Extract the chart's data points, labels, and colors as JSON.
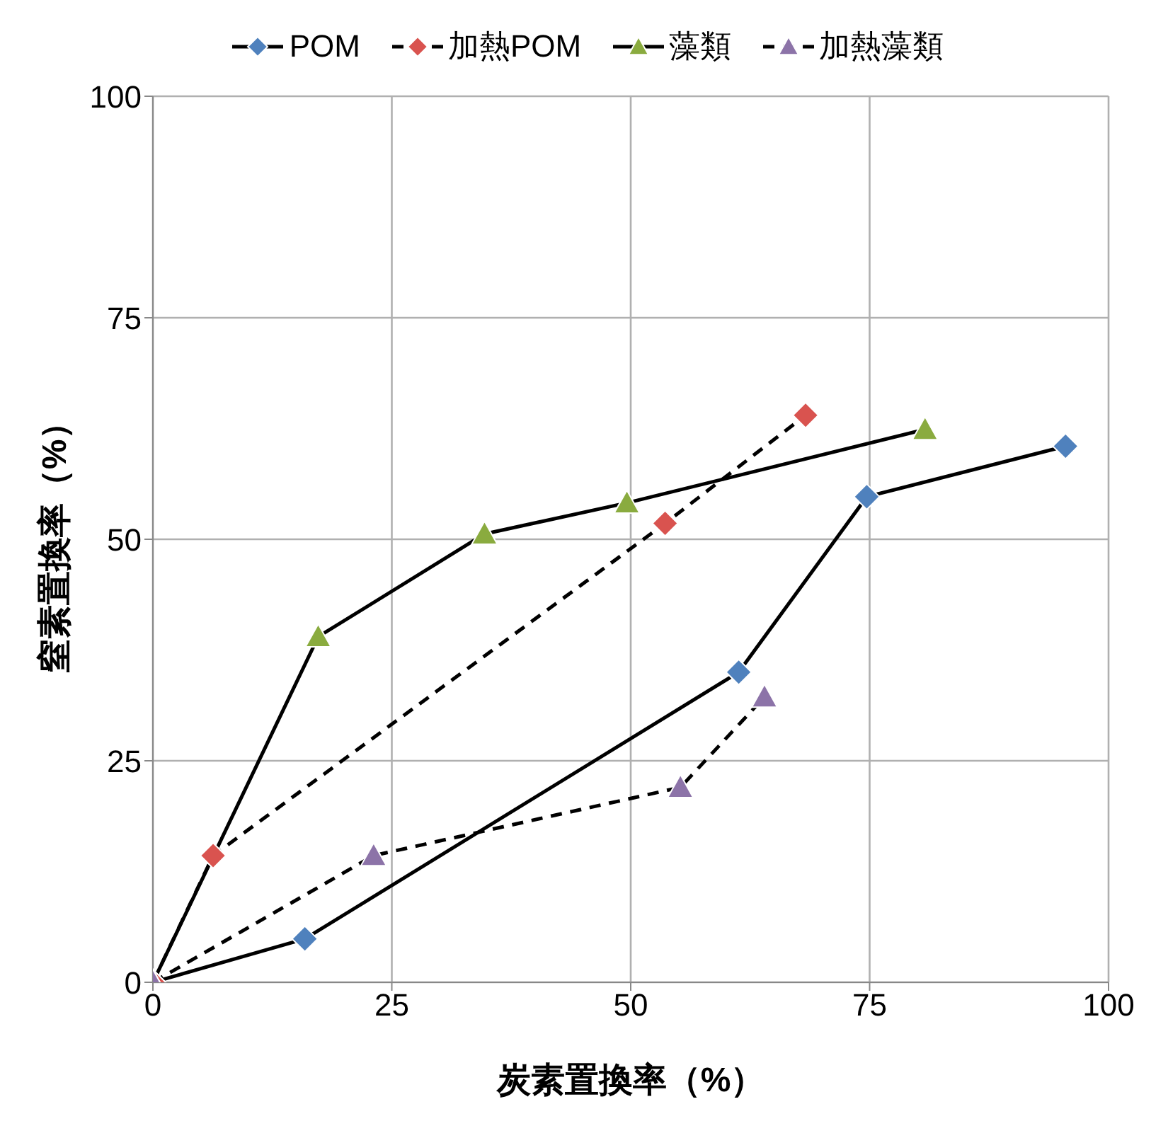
{
  "chart_data": {
    "type": "line",
    "xlabel": "炭素置換率（%）",
    "ylabel": "窒素置換率（%）",
    "xlim": [
      0,
      100
    ],
    "xticks": [
      0,
      25,
      50,
      75,
      100
    ],
    "ylim": [
      0,
      100
    ],
    "yticks": [
      0,
      25,
      50,
      75,
      100
    ],
    "grid": true,
    "legend": "top",
    "series": [
      {
        "name": "POM",
        "color": "#4f81bd",
        "marker": "diamond",
        "line_style": "solid",
        "x": [
          0,
          15.9,
          61.3,
          74.7,
          95.5
        ],
        "values": [
          0,
          4.9,
          35.0,
          54.8,
          60.5
        ]
      },
      {
        "name": "加熱POM",
        "color": "#d9534f",
        "marker": "diamond",
        "line_style": "dashed",
        "x": [
          0,
          6.3,
          53.6,
          68.3
        ],
        "values": [
          0,
          14.3,
          51.8,
          64.0
        ]
      },
      {
        "name": "藻類",
        "color": "#8aab3f",
        "marker": "triangle",
        "line_style": "solid",
        "x": [
          0,
          17.3,
          34.7,
          49.6,
          80.8
        ],
        "values": [
          0,
          39.0,
          50.6,
          54.1,
          62.4
        ]
      },
      {
        "name": "加熱藻類",
        "color": "#8c73a8",
        "marker": "triangle",
        "line_style": "dashed",
        "x": [
          0,
          23.1,
          55.2,
          64.0
        ],
        "values": [
          0,
          14.3,
          22.0,
          32.2
        ]
      }
    ]
  }
}
